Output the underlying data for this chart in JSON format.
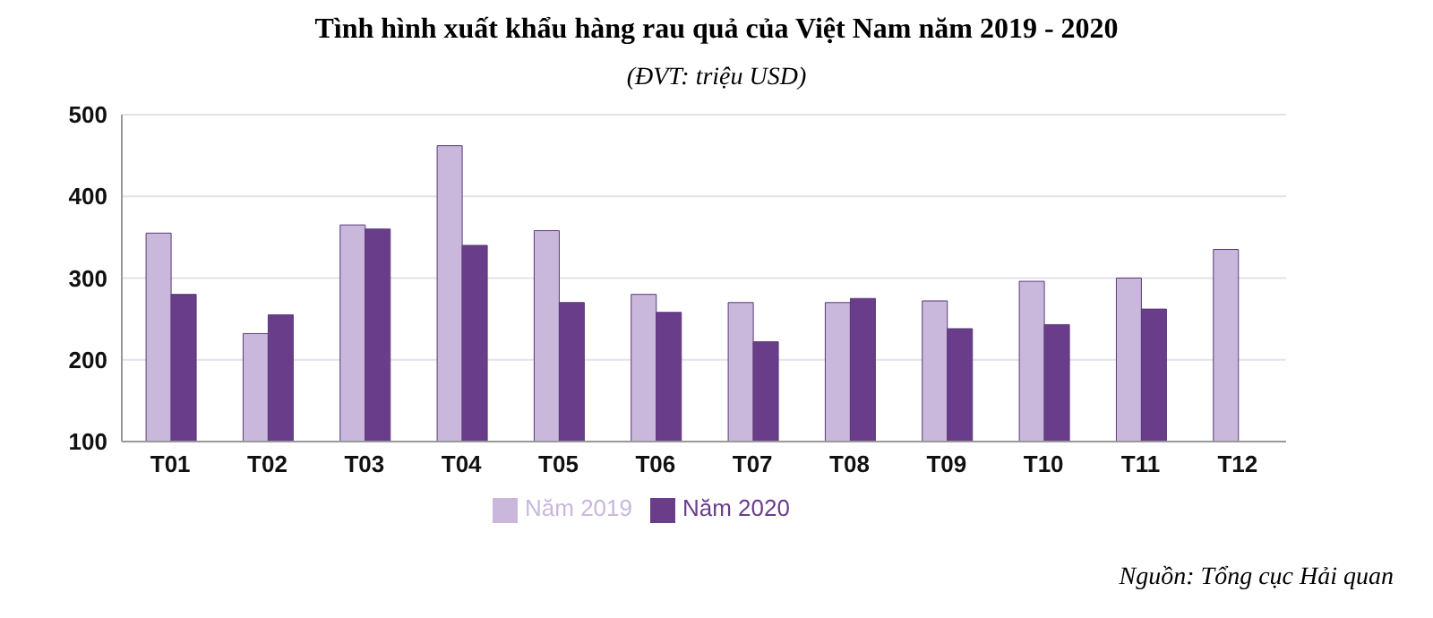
{
  "chart_data": {
    "type": "bar",
    "title": "Tình hình xuất khẩu hàng rau quả của Việt Nam năm 2019 - 2020",
    "subtitle": "(ĐVT: triệu USD)",
    "categories": [
      "T01",
      "T02",
      "T03",
      "T04",
      "T05",
      "T06",
      "T07",
      "T08",
      "T09",
      "T10",
      "T11",
      "T12"
    ],
    "series": [
      {
        "name": "Năm 2019",
        "color": "#c9b8dc",
        "values": [
          355,
          232,
          365,
          462,
          358,
          280,
          270,
          270,
          272,
          296,
          300,
          335
        ]
      },
      {
        "name": "Năm 2020",
        "color": "#6a3d8a",
        "values": [
          280,
          255,
          360,
          340,
          270,
          258,
          222,
          275,
          238,
          243,
          262,
          null
        ]
      }
    ],
    "ylim": [
      100,
      500
    ],
    "yticks": [
      100,
      200,
      300,
      400,
      500
    ],
    "grid": "y",
    "legend": "bottom",
    "annotations": [
      "Nguồn: Tổng cục Hải quan"
    ]
  }
}
